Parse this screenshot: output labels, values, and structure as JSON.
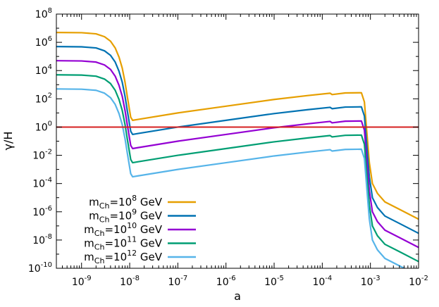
{
  "chart_data": {
    "type": "line",
    "xlabel": "a",
    "ylabel": "γ/H",
    "xscale": "log",
    "yscale": "log",
    "xlim": [
      3e-10,
      0.01
    ],
    "ylim": [
      1e-10,
      100000000.0
    ],
    "grid": false,
    "legend_position": "bottom-left",
    "xticks": [
      {
        "value": 1e-09,
        "base": "10",
        "exp": "-9"
      },
      {
        "value": 1e-08,
        "base": "10",
        "exp": "-8"
      },
      {
        "value": 1e-07,
        "base": "10",
        "exp": "-7"
      },
      {
        "value": 1e-06,
        "base": "10",
        "exp": "-6"
      },
      {
        "value": 1e-05,
        "base": "10",
        "exp": "-5"
      },
      {
        "value": 0.0001,
        "base": "10",
        "exp": "-4"
      },
      {
        "value": 0.001,
        "base": "10",
        "exp": "-3"
      },
      {
        "value": 0.01,
        "base": "10",
        "exp": "-2"
      }
    ],
    "yticks": [
      {
        "value": 1e-10,
        "base": "10",
        "exp": "-10"
      },
      {
        "value": 1e-08,
        "base": "10",
        "exp": "-8"
      },
      {
        "value": 1e-06,
        "base": "10",
        "exp": "-6"
      },
      {
        "value": 0.0001,
        "base": "10",
        "exp": "-4"
      },
      {
        "value": 0.01,
        "base": "10",
        "exp": "-2"
      },
      {
        "value": 1.0,
        "base": "10",
        "exp": "0"
      },
      {
        "value": 100.0,
        "base": "10",
        "exp": "2"
      },
      {
        "value": 10000.0,
        "base": "10",
        "exp": "4"
      },
      {
        "value": 1000000.0,
        "base": "10",
        "exp": "6"
      },
      {
        "value": 100000000.0,
        "base": "10",
        "exp": "8"
      }
    ],
    "reference_line": {
      "y": 1,
      "color": "#d62020"
    },
    "series": [
      {
        "legend_prefix": "m",
        "legend_sub": "Ch",
        "legend_mid": "=10",
        "legend_sup": "8",
        "legend_suffix": " GeV",
        "color": "#e69f00",
        "points": [
          [
            3e-10,
            5000000.0
          ],
          [
            1e-09,
            4800000.0
          ],
          [
            2e-09,
            4000000.0
          ],
          [
            3e-09,
            2500000.0
          ],
          [
            4e-09,
            1200000.0
          ],
          [
            5e-09,
            400000.0
          ],
          [
            6e-09,
            90000.0
          ],
          [
            7e-09,
            15000.0
          ],
          [
            8e-09,
            1500.0
          ],
          [
            9e-09,
            120.0
          ],
          [
            1.05e-08,
            5.0
          ],
          [
            1.15e-08,
            3.0
          ],
          [
            1.5e-08,
            3.5
          ],
          [
            1e-07,
            10
          ],
          [
            1e-06,
            30
          ],
          [
            1e-05,
            90
          ],
          [
            5e-05,
            170
          ],
          [
            0.000145,
            250
          ],
          [
            0.00016,
            200
          ],
          [
            0.0003,
            260
          ],
          [
            0.00065,
            270
          ],
          [
            0.00075,
            60
          ],
          [
            0.00085,
            0.3
          ],
          [
            0.00095,
            0.003
          ],
          [
            0.0011,
            0.0001
          ],
          [
            0.0014,
            2e-05
          ],
          [
            0.002,
            5e-06
          ],
          [
            0.004,
            1.5e-06
          ],
          [
            0.01,
            3e-07
          ]
        ]
      },
      {
        "legend_prefix": "m",
        "legend_sub": "Ch",
        "legend_mid": "=10",
        "legend_sup": "9",
        "legend_suffix": " GeV",
        "color": "#0072b2",
        "points": [
          [
            3e-10,
            500000.0
          ],
          [
            1e-09,
            480000.0
          ],
          [
            2e-09,
            400000.0
          ],
          [
            3e-09,
            250000.0
          ],
          [
            4e-09,
            120000.0
          ],
          [
            5e-09,
            40000.0
          ],
          [
            6e-09,
            9000.0
          ],
          [
            7e-09,
            1500.0
          ],
          [
            8e-09,
            150.0
          ],
          [
            9e-09,
            12
          ],
          [
            1.05e-08,
            0.5
          ],
          [
            1.15e-08,
            0.3
          ],
          [
            1.5e-08,
            0.35
          ],
          [
            1e-07,
            1.0
          ],
          [
            1e-06,
            3.0
          ],
          [
            1e-05,
            9.0
          ],
          [
            5e-05,
            17
          ],
          [
            0.000145,
            25
          ],
          [
            0.00016,
            20
          ],
          [
            0.0003,
            26
          ],
          [
            0.00065,
            27
          ],
          [
            0.00075,
            6
          ],
          [
            0.00085,
            0.03
          ],
          [
            0.00095,
            0.0003
          ],
          [
            0.0011,
            1e-05
          ],
          [
            0.0014,
            2e-06
          ],
          [
            0.002,
            5e-07
          ],
          [
            0.004,
            1.5e-07
          ],
          [
            0.01,
            3e-08
          ]
        ]
      },
      {
        "legend_prefix": "m",
        "legend_sub": "Ch",
        "legend_mid": "=10",
        "legend_sup": "10",
        "legend_suffix": " GeV",
        "color": "#9400d3",
        "points": [
          [
            3e-10,
            50000.0
          ],
          [
            1e-09,
            48000.0
          ],
          [
            2e-09,
            40000.0
          ],
          [
            3e-09,
            25000.0
          ],
          [
            4e-09,
            12000.0
          ],
          [
            5e-09,
            4000.0
          ],
          [
            6e-09,
            900.0
          ],
          [
            7e-09,
            150.0
          ],
          [
            8e-09,
            15
          ],
          [
            9e-09,
            1.2
          ],
          [
            1.05e-08,
            0.05
          ],
          [
            1.15e-08,
            0.03
          ],
          [
            1.5e-08,
            0.035
          ],
          [
            1e-07,
            0.1
          ],
          [
            1e-06,
            0.3
          ],
          [
            1e-05,
            0.9
          ],
          [
            5e-05,
            1.7
          ],
          [
            0.000145,
            2.5
          ],
          [
            0.00016,
            2.0
          ],
          [
            0.0003,
            2.6
          ],
          [
            0.00065,
            2.7
          ],
          [
            0.00075,
            0.6
          ],
          [
            0.00085,
            0.003
          ],
          [
            0.00095,
            3e-05
          ],
          [
            0.0011,
            1e-06
          ],
          [
            0.0014,
            2e-07
          ],
          [
            0.002,
            5e-08
          ],
          [
            0.004,
            1.5e-08
          ],
          [
            0.01,
            3e-09
          ]
        ]
      },
      {
        "legend_prefix": "m",
        "legend_sub": "Ch",
        "legend_mid": "=10",
        "legend_sup": "11",
        "legend_suffix": " GeV",
        "color": "#009e73",
        "points": [
          [
            3e-10,
            5000.0
          ],
          [
            1e-09,
            4800.0
          ],
          [
            2e-09,
            4000.0
          ],
          [
            3e-09,
            2500.0
          ],
          [
            4e-09,
            1200.0
          ],
          [
            5e-09,
            400.0
          ],
          [
            6e-09,
            90
          ],
          [
            7e-09,
            15
          ],
          [
            8e-09,
            1.5
          ],
          [
            9e-09,
            0.12
          ],
          [
            1.05e-08,
            0.005
          ],
          [
            1.15e-08,
            0.003
          ],
          [
            1.5e-08,
            0.0035
          ],
          [
            1e-07,
            0.01
          ],
          [
            1e-06,
            0.03
          ],
          [
            1e-05,
            0.09
          ],
          [
            5e-05,
            0.17
          ],
          [
            0.000145,
            0.25
          ],
          [
            0.00016,
            0.2
          ],
          [
            0.0003,
            0.26
          ],
          [
            0.00065,
            0.27
          ],
          [
            0.00075,
            0.06
          ],
          [
            0.00085,
            0.0003
          ],
          [
            0.00095,
            3e-06
          ],
          [
            0.0011,
            1e-07
          ],
          [
            0.0014,
            2e-08
          ],
          [
            0.002,
            5e-09
          ],
          [
            0.004,
            1.5e-09
          ],
          [
            0.01,
            3e-10
          ]
        ]
      },
      {
        "legend_prefix": "m",
        "legend_sub": "Ch",
        "legend_mid": "=10",
        "legend_sup": "12",
        "legend_suffix": " GeV",
        "color": "#56b4e9",
        "points": [
          [
            3e-10,
            500.0
          ],
          [
            1e-09,
            480.0
          ],
          [
            2e-09,
            400.0
          ],
          [
            3e-09,
            250.0
          ],
          [
            4e-09,
            120.0
          ],
          [
            5e-09,
            40
          ],
          [
            6e-09,
            9
          ],
          [
            7e-09,
            1.5
          ],
          [
            8e-09,
            0.15
          ],
          [
            9e-09,
            0.012
          ],
          [
            1.05e-08,
            0.0005
          ],
          [
            1.15e-08,
            0.0003
          ],
          [
            1.5e-08,
            0.00035
          ],
          [
            1e-07,
            0.001
          ],
          [
            1e-06,
            0.003
          ],
          [
            1e-05,
            0.009
          ],
          [
            5e-05,
            0.017
          ],
          [
            0.000145,
            0.025
          ],
          [
            0.00016,
            0.02
          ],
          [
            0.0003,
            0.026
          ],
          [
            0.00065,
            0.027
          ],
          [
            0.00075,
            0.006
          ],
          [
            0.00085,
            3e-05
          ],
          [
            0.00095,
            3e-07
          ],
          [
            0.0011,
            1e-08
          ],
          [
            0.0014,
            2e-09
          ],
          [
            0.002,
            5e-10
          ],
          [
            0.004,
            1.5e-10
          ],
          [
            0.01,
            3e-11
          ]
        ]
      }
    ]
  }
}
